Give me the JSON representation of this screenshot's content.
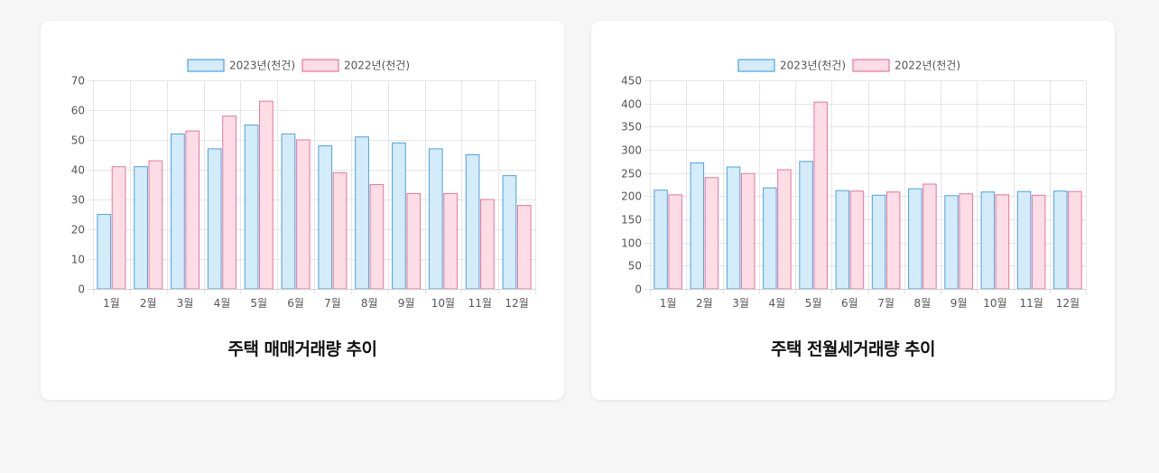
{
  "colors": {
    "series_2023_fill": "#d4ebf9",
    "series_2023_stroke": "#4aa3df",
    "series_2022_fill": "#fddde5",
    "series_2022_stroke": "#e8749a",
    "grid": "#e5e5e5",
    "axis_text": "#555555"
  },
  "chart_data": [
    {
      "type": "bar",
      "title": "주택 매매거래량 추이",
      "categories": [
        "1월",
        "2월",
        "3월",
        "4월",
        "5월",
        "6월",
        "7월",
        "8월",
        "9월",
        "10월",
        "11월",
        "12월"
      ],
      "series": [
        {
          "name": "2023년(천건)",
          "values": [
            25,
            41,
            52,
            47,
            55,
            52,
            48,
            51,
            49,
            47,
            45,
            38
          ]
        },
        {
          "name": "2022년(천건)",
          "values": [
            41,
            43,
            53,
            58,
            63,
            50,
            39,
            35,
            32,
            32,
            30,
            28
          ]
        }
      ],
      "ylim": [
        0,
        70
      ],
      "yticks": [
        0,
        10,
        20,
        30,
        40,
        50,
        60,
        70
      ],
      "grid": true,
      "legend": "top-center"
    },
    {
      "type": "bar",
      "title": "주택 전월세거래량 추이",
      "categories": [
        "1월",
        "2월",
        "3월",
        "4월",
        "5월",
        "6월",
        "7월",
        "8월",
        "9월",
        "10월",
        "11월",
        "12월"
      ],
      "series": [
        {
          "name": "2023년(천건)",
          "values": [
            213,
            272,
            263,
            218,
            275,
            212,
            202,
            216,
            201,
            209,
            210,
            211
          ]
        },
        {
          "name": "2022년(천건)",
          "values": [
            203,
            240,
            249,
            257,
            403,
            211,
            209,
            226,
            205,
            203,
            202,
            210
          ]
        }
      ],
      "ylim": [
        0,
        450
      ],
      "yticks": [
        0,
        50,
        100,
        150,
        200,
        250,
        300,
        350,
        400,
        450
      ],
      "grid": true,
      "legend": "top-center"
    }
  ]
}
